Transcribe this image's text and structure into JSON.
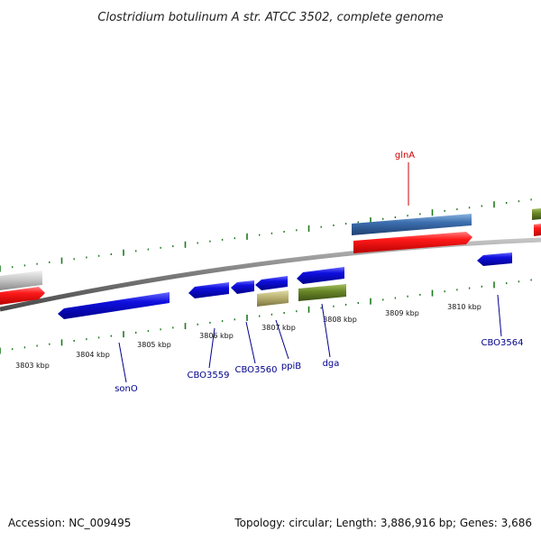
{
  "title": "Clostridium botulinum A str. ATCC 3502, complete genome",
  "footer": {
    "accession": "Accession: NC_009495",
    "summary": "Topology: circular; Length: 3,886,916 bp; Genes: 3,686"
  },
  "colors": {
    "backbone": "#7a7a7a",
    "tick": "#1e7a1e",
    "cds_forward": "#3d6fb0",
    "cds_forward_alt": "#ff1a1a",
    "cds_reverse": "#1010e0",
    "cds_olive": "#6b8a2a",
    "cds_khaki": "#b8b070",
    "cds_grey": "#c8c8c8",
    "label_red": "#cc0000",
    "label_blue": "#00008b"
  },
  "scale_labels": [
    "3803 kbp",
    "3804 kbp",
    "3805 kbp",
    "3806 kbp",
    "3807 kbp",
    "3808 kbp",
    "3809 kbp",
    "3810 kbp"
  ],
  "gene_labels": [
    {
      "name": "glnA",
      "color": "label_red"
    },
    {
      "name": "sonO",
      "color": "label_blue"
    },
    {
      "name": "CBO3559",
      "color": "label_blue"
    },
    {
      "name": "CBO3560",
      "color": "label_blue"
    },
    {
      "name": "ppiB",
      "color": "label_blue"
    },
    {
      "name": "dga",
      "color": "label_blue"
    },
    {
      "name": "CBO3564",
      "color": "label_blue"
    }
  ]
}
